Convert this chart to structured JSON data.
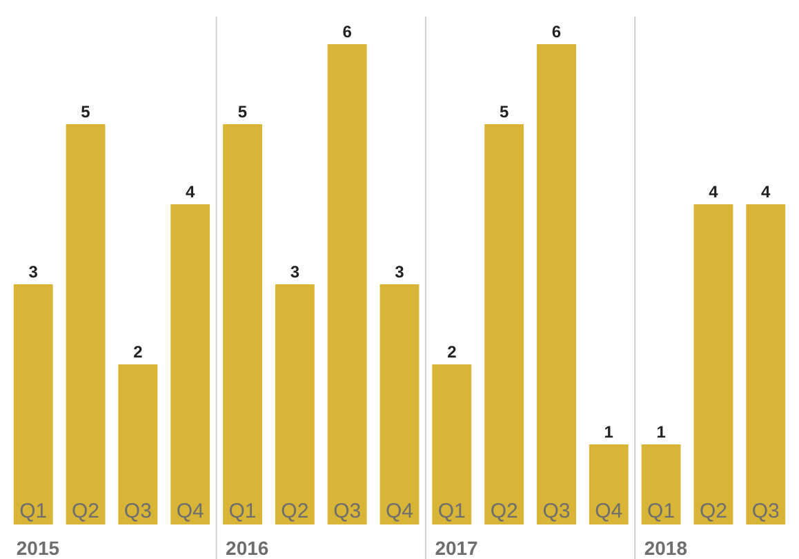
{
  "chart_data": {
    "type": "bar",
    "categories": [
      "Q1",
      "Q2",
      "Q3",
      "Q4",
      "Q1",
      "Q2",
      "Q3",
      "Q4",
      "Q1",
      "Q2",
      "Q3",
      "Q4",
      "Q1",
      "Q2",
      "Q3"
    ],
    "values": [
      3,
      5,
      2,
      4,
      5,
      3,
      6,
      3,
      2,
      5,
      6,
      1,
      1,
      4,
      4
    ],
    "color": "#d8b536",
    "data_labels": true,
    "annotations": [
      "2015",
      "2016",
      "2017",
      "2018"
    ]
  }
}
